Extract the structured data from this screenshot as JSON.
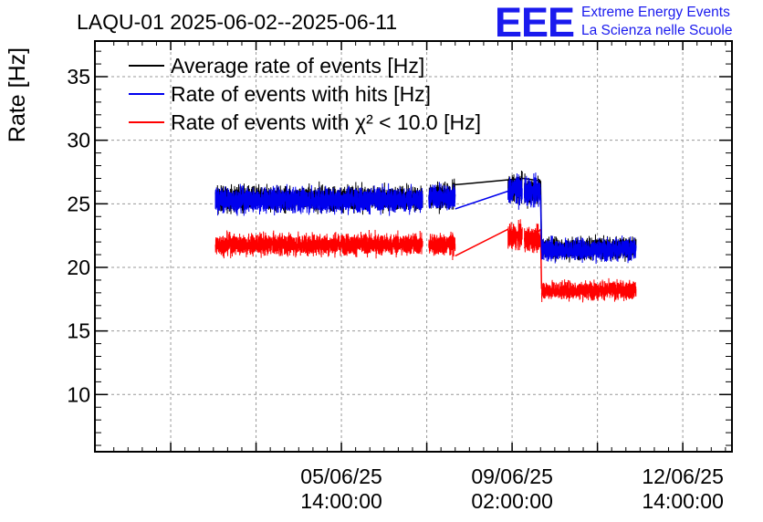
{
  "chart_data": {
    "type": "line",
    "title": "LAQU-01 2025-06-02--2025-06-11",
    "ylabel": "Rate [Hz]",
    "xlabel": "",
    "ylim": [
      5.5,
      37.8
    ],
    "xlim_hours": [
      -59.3,
      254.2
    ],
    "y_ticks": [
      10,
      15,
      20,
      25,
      30,
      35
    ],
    "x_ticks": [
      {
        "date": "05/06/25",
        "time": "14:00:00",
        "hour": 62
      },
      {
        "date": "09/06/25",
        "time": "02:00:00",
        "hour": 146
      },
      {
        "date": "12/06/25",
        "time": "14:00:00",
        "hour": 230
      }
    ],
    "grid": true,
    "legend_position": "top-left",
    "series": [
      {
        "name": "Average rate of events [Hz]",
        "color": "#000000",
        "segments": [
          {
            "hours": [
              0,
              102
            ],
            "mean": 25.4,
            "noise": 0.8
          },
          {
            "hours": [
              105,
              118
            ],
            "mean": 25.6,
            "noise": 0.8
          },
          {
            "hours": [
              144,
              151
            ],
            "mean": 26.2,
            "noise": 0.9
          },
          {
            "hours": [
              152,
              160
            ],
            "mean": 26.0,
            "noise": 0.9
          },
          {
            "hours": [
              160.5,
              207
            ],
            "mean": 21.5,
            "noise": 0.7
          }
        ],
        "connectors": [
          {
            "from": [
              118,
              26.5
            ],
            "to": [
              151.5,
              27.0
            ]
          },
          {
            "from": [
              151.5,
              27.0
            ],
            "to": [
              160,
              26.8
            ]
          },
          {
            "from": [
              160,
              26.8
            ],
            "to": [
              160.5,
              21.5
            ]
          }
        ]
      },
      {
        "name": "Rate of events with hits [Hz]",
        "color": "#0000ee",
        "segments": [
          {
            "hours": [
              0,
              102
            ],
            "mean": 25.3,
            "noise": 0.8
          },
          {
            "hours": [
              105,
              118
            ],
            "mean": 25.5,
            "noise": 0.8
          },
          {
            "hours": [
              144,
              151
            ],
            "mean": 26.1,
            "noise": 0.9
          },
          {
            "hours": [
              152,
              160
            ],
            "mean": 25.9,
            "noise": 0.9
          },
          {
            "hours": [
              160.5,
              207
            ],
            "mean": 21.4,
            "noise": 0.7
          }
        ],
        "connectors": [
          {
            "from": [
              118,
              24.6
            ],
            "to": [
              146,
              26.1
            ]
          },
          {
            "from": [
              152,
              26.3
            ],
            "to": [
              160,
              25.7
            ]
          },
          {
            "from": [
              160,
              25.7
            ],
            "to": [
              160.5,
              21.4
            ]
          }
        ]
      },
      {
        "name": "Rate of events with χ² < 10.0 [Hz]",
        "color": "#ff0000",
        "segments": [
          {
            "hours": [
              0,
              102
            ],
            "mean": 21.8,
            "noise": 0.7
          },
          {
            "hours": [
              105,
              118
            ],
            "mean": 21.8,
            "noise": 0.7
          },
          {
            "hours": [
              144,
              151
            ],
            "mean": 22.4,
            "noise": 0.8
          },
          {
            "hours": [
              152,
              160
            ],
            "mean": 22.2,
            "noise": 0.8
          },
          {
            "hours": [
              160.5,
              207
            ],
            "mean": 18.2,
            "noise": 0.6
          }
        ],
        "connectors": [
          {
            "from": [
              118,
              20.9
            ],
            "to": [
              144,
              23.0
            ]
          },
          {
            "from": [
              152,
              21.5
            ],
            "to": [
              160,
              23.0
            ]
          },
          {
            "from": [
              160,
              23.0
            ],
            "to": [
              160.5,
              18.3
            ]
          }
        ]
      }
    ]
  },
  "logo": {
    "mark": "EEE",
    "line1": "Extreme Energy Events",
    "line2": "La Scienza nelle Scuole",
    "color": "#1a1aee"
  }
}
